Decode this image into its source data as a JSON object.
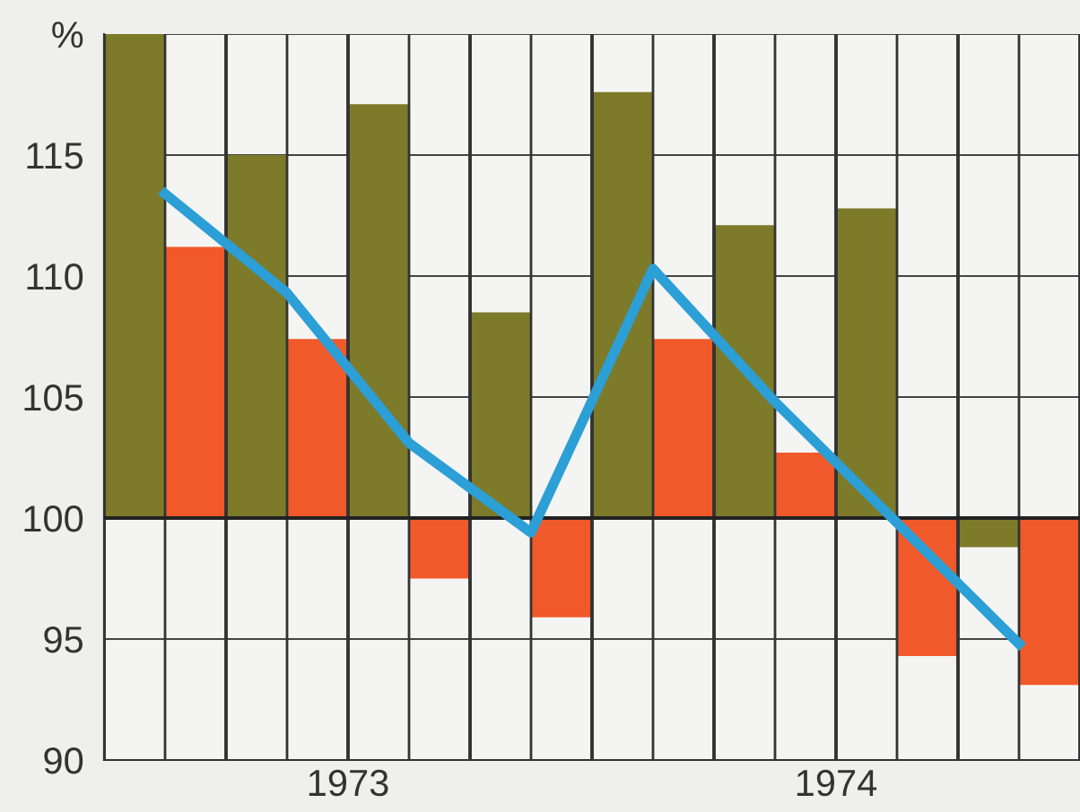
{
  "chart_data": {
    "type": "bar",
    "categories": [
      null,
      null,
      null,
      null,
      null,
      null,
      null,
      null
    ],
    "series": [
      {
        "color": "#7d7a2a",
        "base": [
          100,
          100,
          100,
          100,
          100,
          100,
          100,
          100
        ],
        "values": [
          20,
          15.0,
          17.1,
          8.5,
          17.6,
          12.1,
          12.8,
          -1.2
        ]
      },
      {
        "color": "#f0592a",
        "base": [
          100,
          100,
          100,
          100,
          100,
          100,
          100,
          100
        ],
        "values": [
          11.2,
          7.4,
          -2.5,
          -4.1,
          7.4,
          2.7,
          -5.7,
          -6.9
        ]
      },
      {
        "type": "line",
        "color": "#2b9fd6",
        "values": [
          113.4,
          109.3,
          103.1,
          99.4,
          110.3,
          104.8,
          99.8,
          94.8
        ]
      }
    ],
    "ylim": [
      90,
      120
    ],
    "yticks": [
      90,
      95,
      100,
      105,
      110,
      115,
      {
        "value": 120,
        "label": "%"
      }
    ],
    "ref_lines": [
      {
        "axis": "y",
        "value": 100,
        "color": "#222222"
      }
    ],
    "annotations": [
      "1973",
      "1974"
    ],
    "grid": true,
    "legend": false,
    "marker": "none",
    "line_style": "solid"
  }
}
